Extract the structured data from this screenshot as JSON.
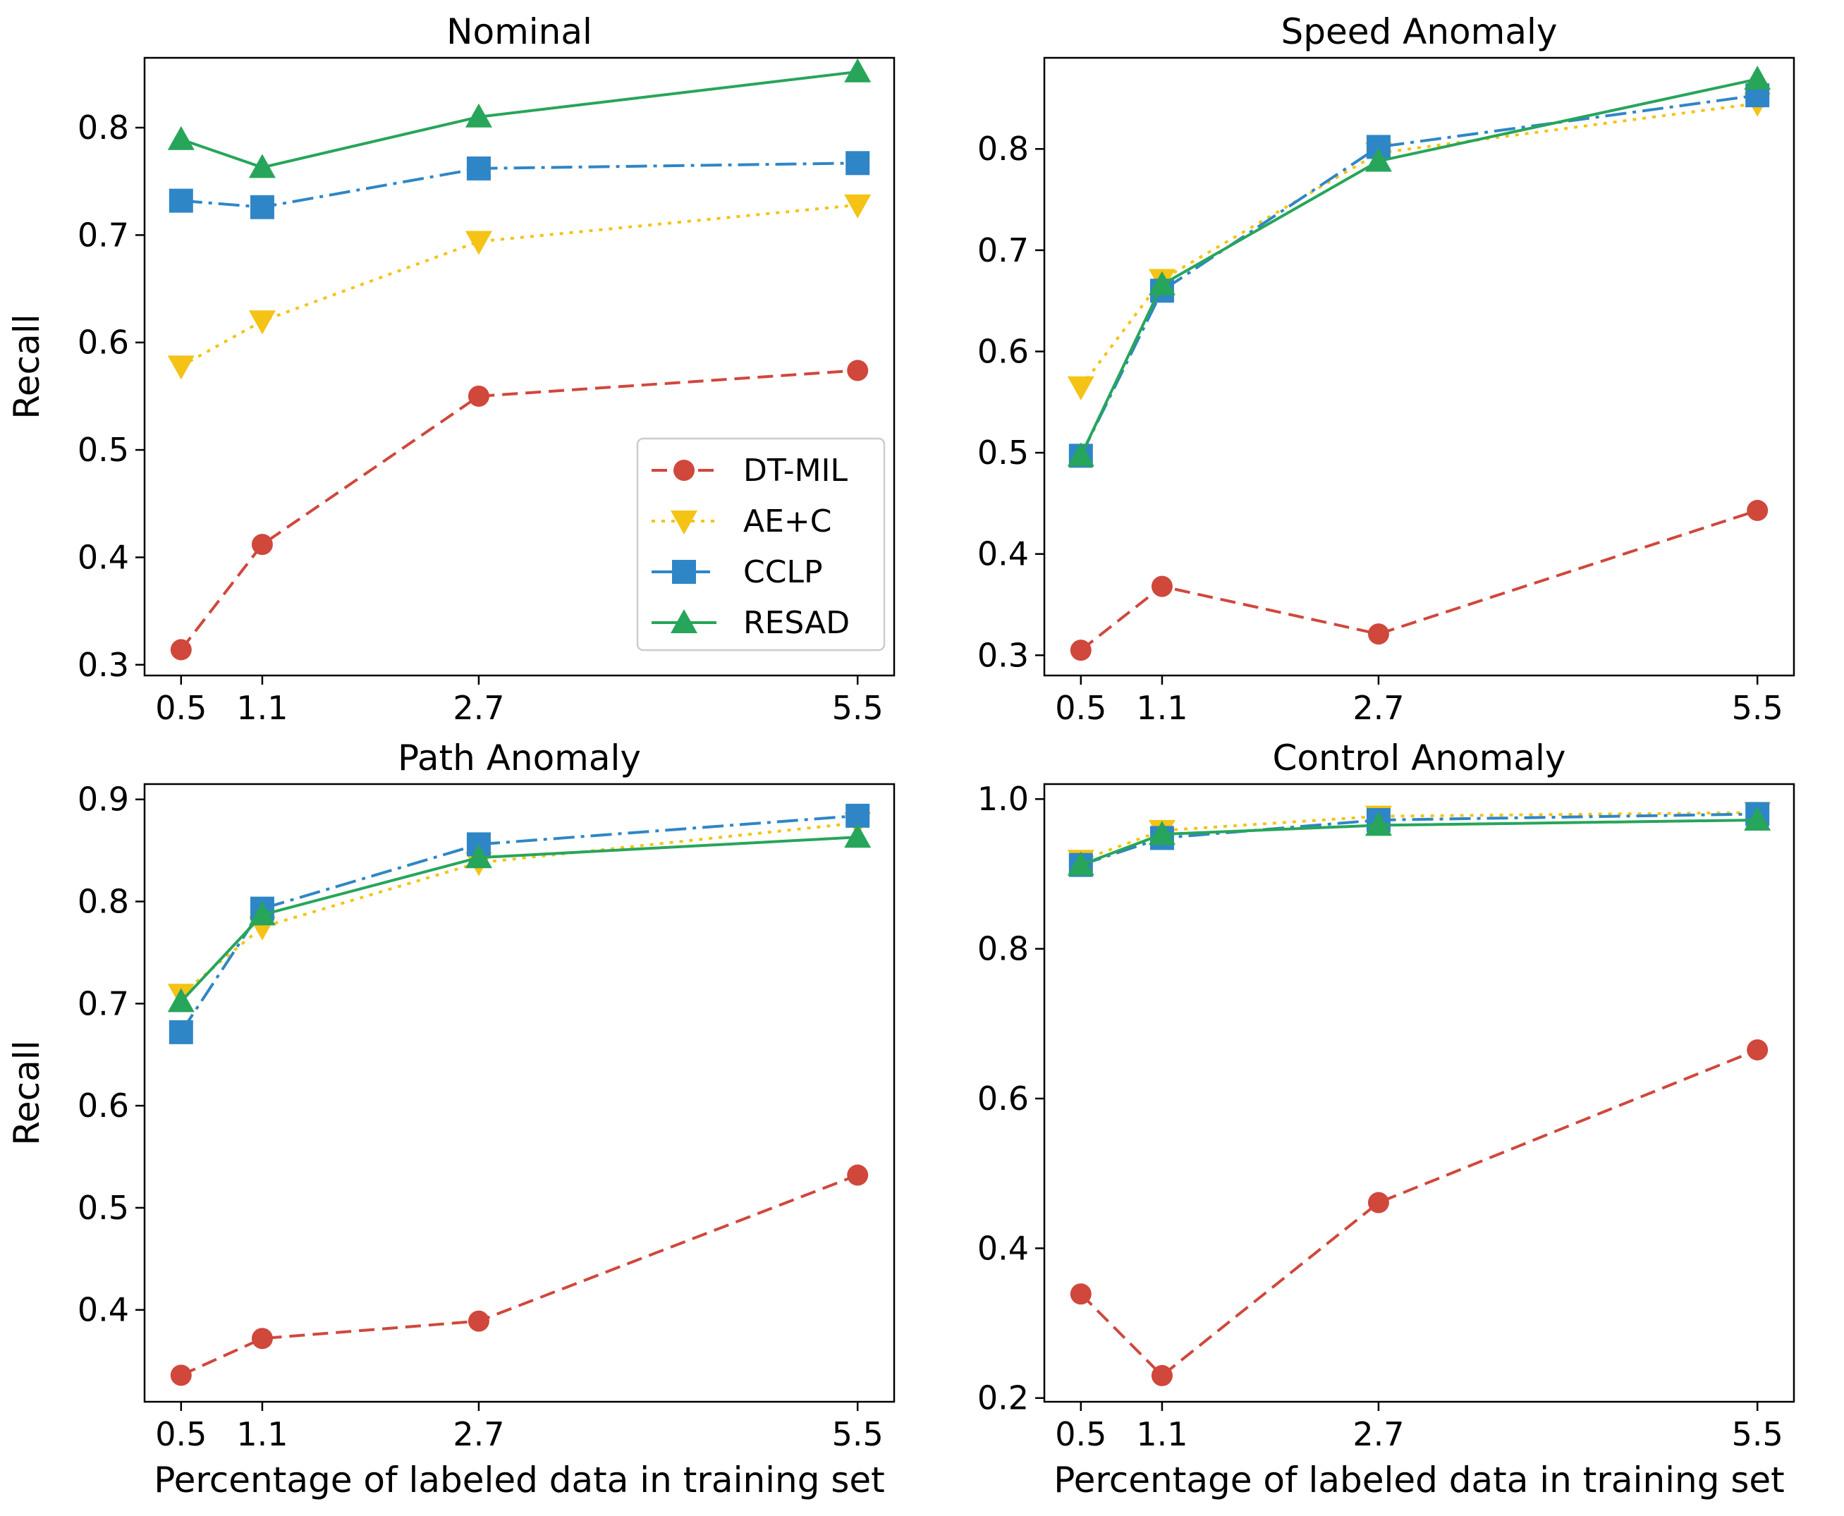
{
  "chart_data": [
    {
      "type": "line",
      "title": "Nominal",
      "xlabel": "",
      "ylabel": "Recall",
      "x": [
        0.5,
        1.1,
        2.7,
        5.5
      ],
      "x_tick_labels": [
        "0.5",
        "1.1",
        "2.7",
        "5.5"
      ],
      "ylim": [
        0.29,
        0.865
      ],
      "y_ticks": [
        0.3,
        0.4,
        0.5,
        0.6,
        0.7,
        0.8
      ],
      "y_tick_labels": [
        "0.3",
        "0.4",
        "0.5",
        "0.6",
        "0.7",
        "0.8"
      ],
      "legend": "lower-right",
      "series": [
        {
          "name": "DT-MIL",
          "values": [
            0.314,
            0.412,
            0.55,
            0.574
          ]
        },
        {
          "name": "AE+C",
          "values": [
            0.578,
            0.62,
            0.694,
            0.728
          ]
        },
        {
          "name": "CCLP",
          "values": [
            0.732,
            0.726,
            0.762,
            0.767
          ]
        },
        {
          "name": "RESAD",
          "values": [
            0.789,
            0.763,
            0.81,
            0.852
          ]
        }
      ]
    },
    {
      "type": "line",
      "title": "Speed Anomaly",
      "xlabel": "",
      "ylabel": "",
      "x": [
        0.5,
        1.1,
        2.7,
        5.5
      ],
      "x_tick_labels": [
        "0.5",
        "1.1",
        "2.7",
        "5.5"
      ],
      "ylim": [
        0.28,
        0.89
      ],
      "y_ticks": [
        0.3,
        0.4,
        0.5,
        0.6,
        0.7,
        0.8
      ],
      "y_tick_labels": [
        "0.3",
        "0.4",
        "0.5",
        "0.6",
        "0.7",
        "0.8"
      ],
      "legend": "",
      "series": [
        {
          "name": "DT-MIL",
          "values": [
            0.305,
            0.368,
            0.321,
            0.443
          ]
        },
        {
          "name": "AE+C",
          "values": [
            0.565,
            0.671,
            0.796,
            0.845
          ]
        },
        {
          "name": "CCLP",
          "values": [
            0.497,
            0.66,
            0.802,
            0.853
          ]
        },
        {
          "name": "RESAD",
          "values": [
            0.497,
            0.666,
            0.788,
            0.869
          ]
        }
      ]
    },
    {
      "type": "line",
      "title": "Path Anomaly",
      "xlabel": "Percentage of labeled data in training set",
      "ylabel": "Recall",
      "x": [
        0.5,
        1.1,
        2.7,
        5.5
      ],
      "x_tick_labels": [
        "0.5",
        "1.1",
        "2.7",
        "5.5"
      ],
      "ylim": [
        0.31,
        0.915
      ],
      "y_ticks": [
        0.4,
        0.5,
        0.6,
        0.7,
        0.8,
        0.9
      ],
      "y_tick_labels": [
        "0.4",
        "0.5",
        "0.6",
        "0.7",
        "0.8",
        "0.9"
      ],
      "legend": "",
      "series": [
        {
          "name": "DT-MIL",
          "values": [
            0.336,
            0.372,
            0.389,
            0.532
          ]
        },
        {
          "name": "AE+C",
          "values": [
            0.709,
            0.775,
            0.838,
            0.877
          ]
        },
        {
          "name": "CCLP",
          "values": [
            0.672,
            0.793,
            0.856,
            0.884
          ]
        },
        {
          "name": "RESAD",
          "values": [
            0.702,
            0.787,
            0.843,
            0.863
          ]
        }
      ]
    },
    {
      "type": "line",
      "title": "Control Anomaly",
      "xlabel": "Percentage of labeled data in training set",
      "ylabel": "",
      "x": [
        0.5,
        1.1,
        2.7,
        5.5
      ],
      "x_tick_labels": [
        "0.5",
        "1.1",
        "2.7",
        "5.5"
      ],
      "ylim": [
        0.195,
        1.02
      ],
      "y_ticks": [
        0.2,
        0.4,
        0.6,
        0.8,
        1.0
      ],
      "y_tick_labels": [
        "0.2",
        "0.4",
        "0.6",
        "0.8",
        "1.0"
      ],
      "legend": "",
      "series": [
        {
          "name": "DT-MIL",
          "values": [
            0.339,
            0.23,
            0.461,
            0.665
          ]
        },
        {
          "name": "AE+C",
          "values": [
            0.918,
            0.958,
            0.977,
            0.982
          ]
        },
        {
          "name": "CCLP",
          "values": [
            0.912,
            0.948,
            0.972,
            0.98
          ]
        },
        {
          "name": "RESAD",
          "values": [
            0.912,
            0.953,
            0.965,
            0.972
          ]
        }
      ]
    }
  ],
  "style": {
    "series_colors": {
      "DT-MIL": "#d0473c",
      "AE+C": "#f4c316",
      "CCLP": "#2f86c6",
      "RESAD": "#27a55a"
    },
    "series_markers": {
      "DT-MIL": "circle",
      "AE+C": "triangle-down",
      "CCLP": "square",
      "RESAD": "triangle-up"
    },
    "series_linestyles": {
      "DT-MIL": "dashed",
      "AE+C": "dotted",
      "CCLP": "dash-dot",
      "RESAD": "solid"
    }
  }
}
